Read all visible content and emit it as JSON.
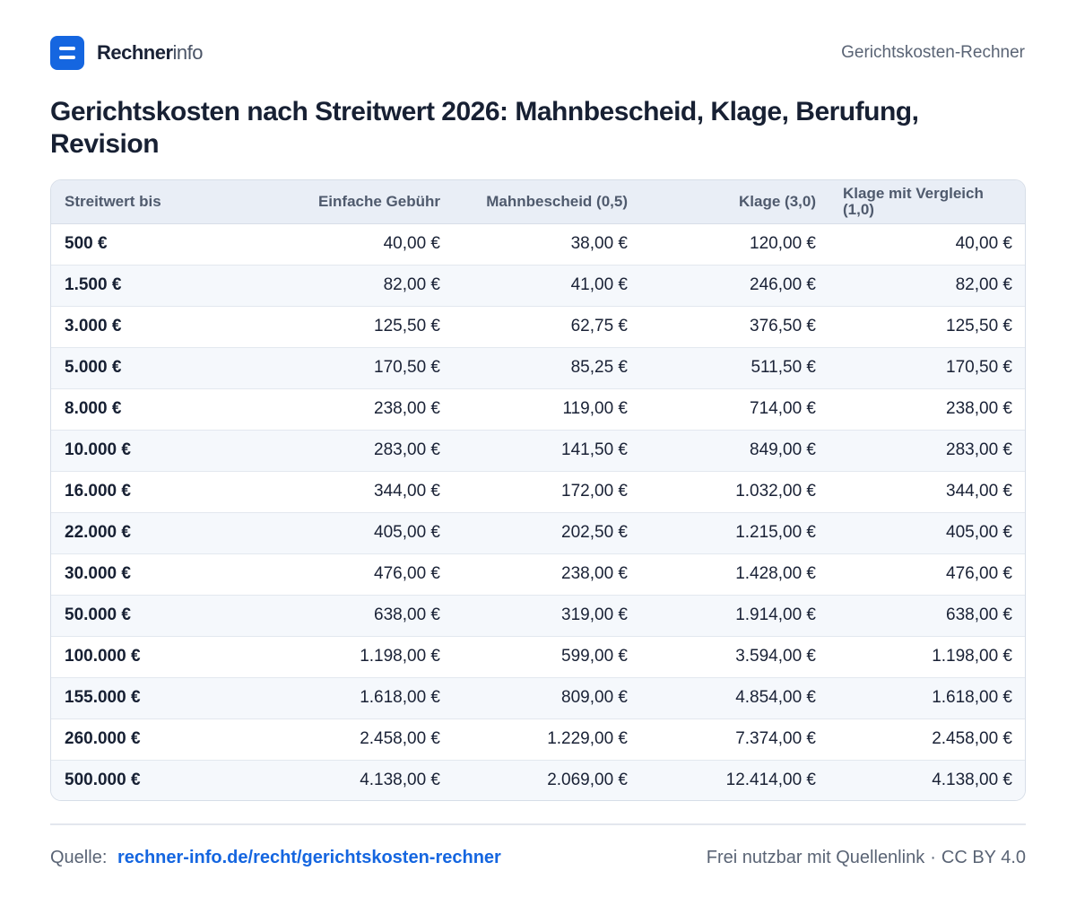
{
  "header": {
    "brand_strong": "Rechner",
    "brand_light": "info",
    "right_label": "Gerichtskosten-Rechner"
  },
  "title": "Gerichtskosten nach Streitwert 2026: Mahnbescheid, Klage, Berufung, Revision",
  "table": {
    "columns": [
      "Streitwert bis",
      "Einfache Gebühr",
      "Mahnbescheid (0,5)",
      "Klage (3,0)",
      "Klage mit Vergleich (1,0)"
    ],
    "rows": [
      [
        "500 €",
        "40,00 €",
        "38,00 €",
        "120,00 €",
        "40,00 €"
      ],
      [
        "1.500 €",
        "82,00 €",
        "41,00 €",
        "246,00 €",
        "82,00 €"
      ],
      [
        "3.000 €",
        "125,50 €",
        "62,75 €",
        "376,50 €",
        "125,50 €"
      ],
      [
        "5.000 €",
        "170,50 €",
        "85,25 €",
        "511,50 €",
        "170,50 €"
      ],
      [
        "8.000 €",
        "238,00 €",
        "119,00 €",
        "714,00 €",
        "238,00 €"
      ],
      [
        "10.000 €",
        "283,00 €",
        "141,50 €",
        "849,00 €",
        "283,00 €"
      ],
      [
        "16.000 €",
        "344,00 €",
        "172,00 €",
        "1.032,00 €",
        "344,00 €"
      ],
      [
        "22.000 €",
        "405,00 €",
        "202,50 €",
        "1.215,00 €",
        "405,00 €"
      ],
      [
        "30.000 €",
        "476,00 €",
        "238,00 €",
        "1.428,00 €",
        "476,00 €"
      ],
      [
        "50.000 €",
        "638,00 €",
        "319,00 €",
        "1.914,00 €",
        "638,00 €"
      ],
      [
        "100.000 €",
        "1.198,00 €",
        "599,00 €",
        "3.594,00 €",
        "1.198,00 €"
      ],
      [
        "155.000 €",
        "1.618,00 €",
        "809,00 €",
        "4.854,00 €",
        "1.618,00 €"
      ],
      [
        "260.000 €",
        "2.458,00 €",
        "1.229,00 €",
        "7.374,00 €",
        "2.458,00 €"
      ],
      [
        "500.000 €",
        "4.138,00 €",
        "2.069,00 €",
        "12.414,00 €",
        "4.138,00 €"
      ]
    ]
  },
  "footer": {
    "source_label": "Quelle:",
    "source_link": "rechner-info.de/recht/gerichtskosten-rechner",
    "usage": "Frei nutzbar mit Quellenlink",
    "separator": "·",
    "license": "CC BY 4.0"
  },
  "colors": {
    "accent": "#1566e0",
    "header_bg": "#e9eef6",
    "stripe_bg": "#f5f8fc"
  },
  "icons": {
    "logo": "list-icon"
  }
}
